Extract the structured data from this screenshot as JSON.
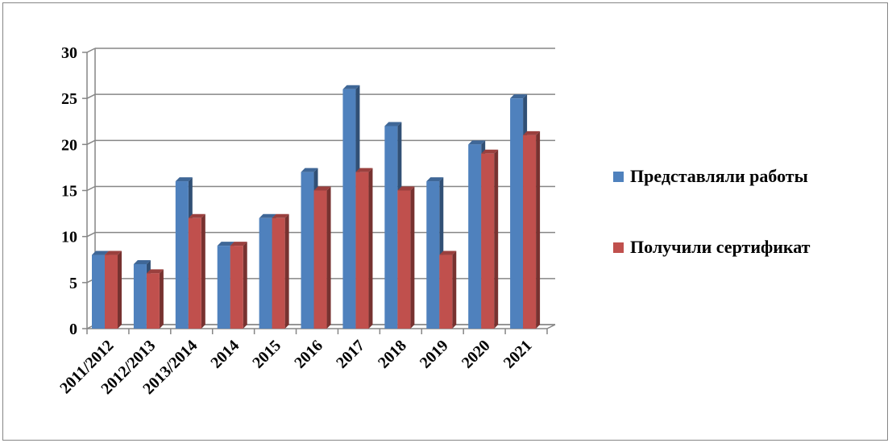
{
  "chart_data": {
    "type": "bar",
    "categories": [
      "2011/2012",
      "2012/2013",
      "2013/2014",
      "2014",
      "2015",
      "2016",
      "2017",
      "2018",
      "2019",
      "2020",
      "2021"
    ],
    "series": [
      {
        "name": "Представляли работы",
        "values": [
          8,
          7,
          16,
          9,
          12,
          17,
          26,
          22,
          16,
          20,
          25
        ],
        "color": "#4F81BD"
      },
      {
        "name": "Получили сертификат",
        "values": [
          8,
          6,
          12,
          9,
          12,
          15,
          17,
          15,
          8,
          19,
          21
        ],
        "color": "#C0504D"
      }
    ],
    "ylim": [
      0,
      30
    ],
    "yticks": [
      "0",
      "5",
      "10",
      "15",
      "20",
      "25",
      "30"
    ],
    "grid": true,
    "legend": "right",
    "style": "3d-clustered-column"
  }
}
